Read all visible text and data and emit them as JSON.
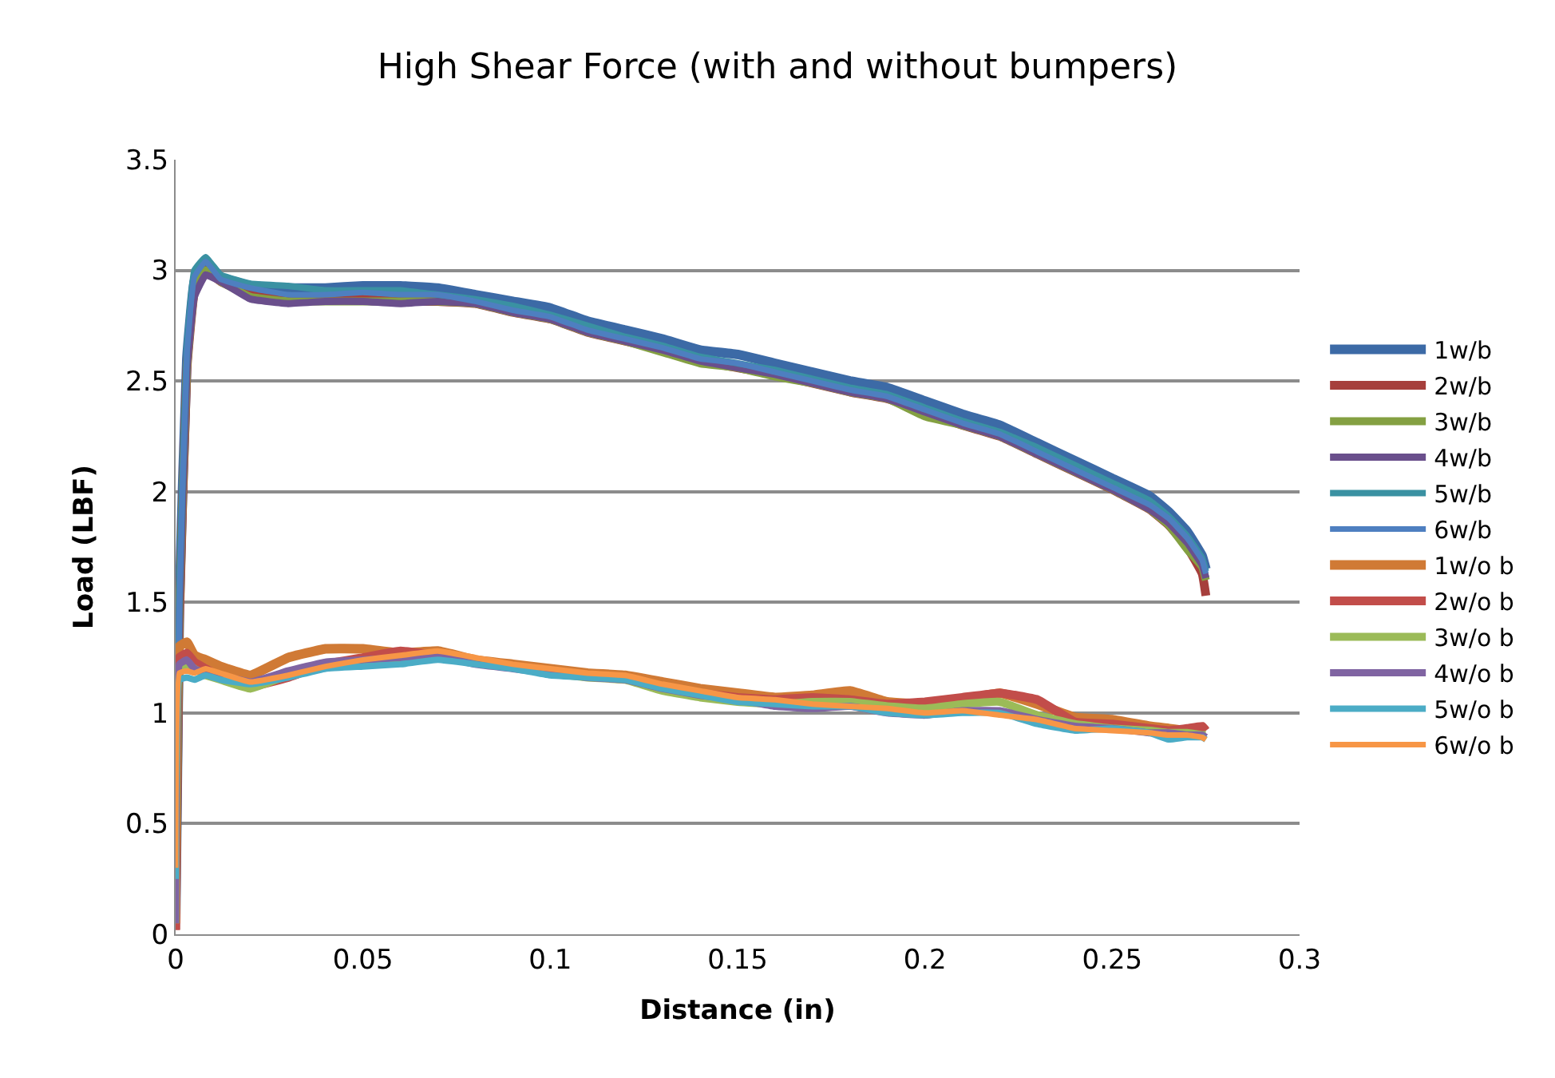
{
  "chart_data": {
    "type": "line",
    "title": "High Shear Force (with and without bumpers)",
    "xlabel": "Distance (in)",
    "ylabel": "Load (LBF)",
    "x": [
      0,
      0.001,
      0.003,
      0.005,
      0.008,
      0.012,
      0.02,
      0.03,
      0.04,
      0.05,
      0.06,
      0.07,
      0.08,
      0.09,
      0.1,
      0.11,
      0.12,
      0.13,
      0.14,
      0.15,
      0.16,
      0.17,
      0.18,
      0.19,
      0.2,
      0.21,
      0.22,
      0.23,
      0.24,
      0.25,
      0.26,
      0.265,
      0.27,
      0.274,
      0.275
    ],
    "xlim": [
      0,
      0.3
    ],
    "xticks": [
      0,
      0.05,
      0.1,
      0.15,
      0.2,
      0.25,
      0.3
    ],
    "ylim": [
      0,
      3.5
    ],
    "yticks": [
      0,
      0.5,
      1,
      1.5,
      2,
      2.5,
      3,
      3.5
    ],
    "grid": "y",
    "legend": "right",
    "marker": "none",
    "line_style": "solid",
    "series": [
      {
        "name": "1w/b",
        "color": "#3c6aa6",
        "values": [
          0.05,
          1.5,
          2.6,
          2.95,
          3.04,
          2.97,
          2.93,
          2.92,
          2.92,
          2.93,
          2.93,
          2.92,
          2.89,
          2.86,
          2.83,
          2.77,
          2.73,
          2.69,
          2.64,
          2.62,
          2.58,
          2.54,
          2.5,
          2.47,
          2.41,
          2.35,
          2.3,
          2.22,
          2.14,
          2.06,
          1.98,
          1.91,
          1.82,
          1.71,
          1.65
        ]
      },
      {
        "name": "2w/b",
        "color": "#a63f3c",
        "values": [
          0.02,
          1.4,
          2.55,
          2.9,
          3.0,
          2.95,
          2.89,
          2.87,
          2.87,
          2.87,
          2.86,
          2.86,
          2.85,
          2.81,
          2.78,
          2.72,
          2.68,
          2.64,
          2.59,
          2.56,
          2.53,
          2.49,
          2.45,
          2.42,
          2.36,
          2.3,
          2.25,
          2.17,
          2.09,
          2.01,
          1.92,
          1.85,
          1.75,
          1.63,
          1.53
        ]
      },
      {
        "name": "3w/b",
        "color": "#84a042",
        "values": [
          0.05,
          1.45,
          2.55,
          2.9,
          3.0,
          2.95,
          2.88,
          2.86,
          2.86,
          2.86,
          2.86,
          2.86,
          2.85,
          2.81,
          2.78,
          2.72,
          2.68,
          2.63,
          2.58,
          2.56,
          2.52,
          2.49,
          2.45,
          2.42,
          2.34,
          2.3,
          2.25,
          2.17,
          2.09,
          2.01,
          1.92,
          1.85,
          1.74,
          1.66,
          1.6
        ]
      },
      {
        "name": "4w/b",
        "color": "#6a4f8c",
        "values": [
          0.05,
          1.45,
          2.55,
          2.88,
          2.98,
          2.95,
          2.87,
          2.85,
          2.86,
          2.86,
          2.85,
          2.86,
          2.85,
          2.81,
          2.78,
          2.72,
          2.68,
          2.64,
          2.59,
          2.56,
          2.53,
          2.49,
          2.45,
          2.42,
          2.36,
          2.3,
          2.25,
          2.17,
          2.09,
          2.01,
          1.92,
          1.86,
          1.77,
          1.67,
          1.61
        ]
      },
      {
        "name": "5w/b",
        "color": "#3a91a2",
        "values": [
          0.1,
          1.55,
          2.65,
          3.0,
          3.06,
          2.98,
          2.94,
          2.93,
          2.91,
          2.91,
          2.91,
          2.89,
          2.87,
          2.84,
          2.8,
          2.75,
          2.7,
          2.66,
          2.61,
          2.58,
          2.55,
          2.51,
          2.47,
          2.44,
          2.38,
          2.32,
          2.27,
          2.2,
          2.12,
          2.04,
          1.96,
          1.89,
          1.8,
          1.7,
          1.64
        ]
      },
      {
        "name": "6w/b",
        "color": "#4e7fc0",
        "values": [
          0.05,
          1.5,
          2.62,
          2.97,
          3.04,
          2.96,
          2.92,
          2.89,
          2.89,
          2.9,
          2.89,
          2.89,
          2.86,
          2.82,
          2.79,
          2.73,
          2.69,
          2.65,
          2.6,
          2.58,
          2.54,
          2.5,
          2.46,
          2.43,
          2.37,
          2.31,
          2.26,
          2.18,
          2.1,
          2.02,
          1.94,
          1.88,
          1.79,
          1.69,
          1.63
        ]
      },
      {
        "name": "1w/o b",
        "color": "#d07a35",
        "values": [
          0.05,
          1.3,
          1.32,
          1.26,
          1.24,
          1.21,
          1.17,
          1.25,
          1.29,
          1.29,
          1.27,
          1.28,
          1.24,
          1.22,
          1.2,
          1.18,
          1.17,
          1.14,
          1.11,
          1.09,
          1.07,
          1.08,
          1.1,
          1.05,
          1.04,
          1.06,
          1.09,
          1.04,
          0.98,
          0.97,
          0.94,
          0.93,
          0.92,
          0.93,
          0.92
        ]
      },
      {
        "name": "2w/o b",
        "color": "#c24d4a",
        "values": [
          0.02,
          1.25,
          1.27,
          1.23,
          1.2,
          1.16,
          1.12,
          1.16,
          1.22,
          1.25,
          1.28,
          1.26,
          1.23,
          1.21,
          1.19,
          1.17,
          1.16,
          1.12,
          1.09,
          1.07,
          1.06,
          1.07,
          1.06,
          1.04,
          1.05,
          1.07,
          1.09,
          1.06,
          0.96,
          0.95,
          0.93,
          0.92,
          0.93,
          0.94,
          0.92
        ]
      },
      {
        "name": "3w/o b",
        "color": "#9bbb58",
        "values": [
          0.05,
          1.2,
          1.22,
          1.2,
          1.17,
          1.15,
          1.11,
          1.17,
          1.21,
          1.22,
          1.24,
          1.26,
          1.23,
          1.21,
          1.18,
          1.16,
          1.15,
          1.1,
          1.07,
          1.05,
          1.04,
          1.05,
          1.05,
          1.03,
          1.02,
          1.04,
          1.05,
          0.99,
          0.95,
          0.93,
          0.92,
          0.91,
          0.91,
          0.9,
          0.9
        ]
      },
      {
        "name": "4w/o b",
        "color": "#8064a2",
        "values": [
          0.05,
          1.22,
          1.24,
          1.2,
          1.18,
          1.17,
          1.14,
          1.19,
          1.23,
          1.24,
          1.25,
          1.26,
          1.22,
          1.2,
          1.18,
          1.16,
          1.15,
          1.11,
          1.08,
          1.06,
          1.03,
          1.02,
          1.03,
          1.0,
          0.99,
          1.01,
          1.01,
          0.97,
          0.94,
          0.93,
          0.91,
          0.91,
          0.9,
          0.9,
          0.89
        ]
      },
      {
        "name": "5w/o b",
        "color": "#4bacc6",
        "values": [
          0.25,
          1.15,
          1.16,
          1.15,
          1.17,
          1.15,
          1.13,
          1.16,
          1.2,
          1.21,
          1.22,
          1.24,
          1.22,
          1.2,
          1.17,
          1.16,
          1.15,
          1.11,
          1.08,
          1.05,
          1.04,
          1.03,
          1.03,
          1.0,
          0.99,
          1.0,
          1.0,
          0.95,
          0.92,
          0.93,
          0.91,
          0.88,
          0.89,
          0.89,
          0.88
        ]
      },
      {
        "name": "6w/o b",
        "color": "#f79646",
        "values": [
          0.3,
          1.18,
          1.19,
          1.18,
          1.2,
          1.18,
          1.14,
          1.17,
          1.21,
          1.24,
          1.26,
          1.28,
          1.25,
          1.22,
          1.2,
          1.18,
          1.17,
          1.13,
          1.1,
          1.07,
          1.06,
          1.04,
          1.03,
          1.02,
          1.0,
          1.01,
          0.99,
          0.97,
          0.93,
          0.92,
          0.91,
          0.9,
          0.9,
          0.89,
          0.88
        ]
      }
    ]
  }
}
